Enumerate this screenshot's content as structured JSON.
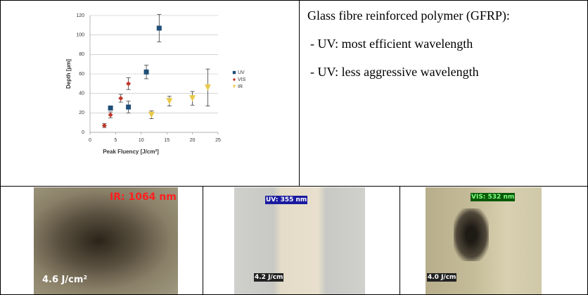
{
  "chart_data": {
    "type": "scatter",
    "xlabel": "Peak Fluency [J/cm²]",
    "ylabel": "Depth [µm]",
    "xlim": [
      0,
      25
    ],
    "xticks": [
      0,
      5,
      10,
      15,
      20,
      25
    ],
    "ylim": [
      0,
      120
    ],
    "yticks": [
      0,
      20,
      40,
      60,
      80,
      100,
      120
    ],
    "grid": true,
    "series": [
      {
        "name": "UV",
        "color": "#1f4e79",
        "marker": "square",
        "x": [
          4,
          7.5,
          11,
          13.5
        ],
        "values": [
          25,
          26,
          62,
          107
        ],
        "errors": [
          2,
          6,
          7,
          14
        ]
      },
      {
        "name": "VIS",
        "color": "#c0392b",
        "marker": "diamond",
        "x": [
          2.8,
          4,
          6,
          7.5
        ],
        "values": [
          7,
          18,
          35,
          50
        ],
        "errors": [
          2,
          3,
          4,
          6
        ]
      },
      {
        "name": "IR",
        "color": "#e8c94a",
        "marker": "triangle",
        "x": [
          12,
          15.5,
          20,
          23
        ],
        "values": [
          18,
          32,
          35,
          46
        ],
        "errors": [
          4,
          5,
          7,
          19
        ]
      }
    ]
  },
  "text": {
    "heading": "Glass fibre reinforced polymer (GFRP):",
    "bullets": [
      "- UV: most efficient wavelength",
      "- UV: less aggressive wavelength"
    ]
  },
  "images": [
    {
      "wavelength": "IR: 1064 nm",
      "fluency": "4.6 J/cm²"
    },
    {
      "wavelength": "UV: 355 nm",
      "fluency": "4.2 J/cm"
    },
    {
      "wavelength": "VIS: 532 nm",
      "fluency": "4.0 J/cm"
    }
  ]
}
